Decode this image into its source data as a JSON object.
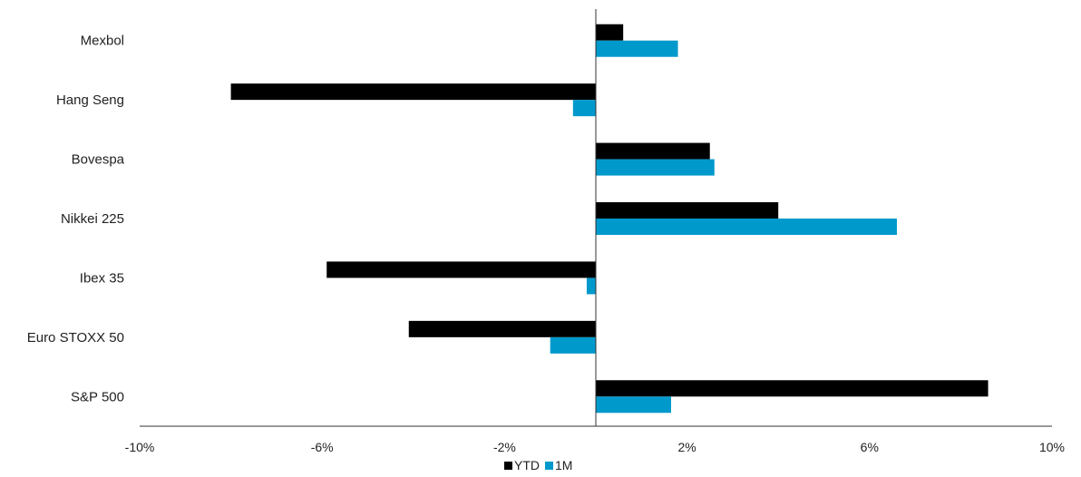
{
  "chart_data": {
    "type": "bar",
    "orientation": "horizontal",
    "title": "",
    "xlabel": "",
    "ylabel": "",
    "categories": [
      "Mexbol",
      "Hang Seng",
      "Bovespa",
      "Nikkei 225",
      "Ibex 35",
      "Euro STOXX 50",
      "S&P 500"
    ],
    "series": [
      {
        "name": "YTD",
        "color": "#000000",
        "values": [
          0.6,
          -8.0,
          2.5,
          4.0,
          -5.9,
          -4.1,
          8.6
        ]
      },
      {
        "name": "1M",
        "color": "#0099cc",
        "values": [
          1.8,
          -0.5,
          2.6,
          6.6,
          -0.2,
          -1.0,
          1.65
        ]
      }
    ],
    "xlim": [
      -10,
      10
    ],
    "xticks": [
      -10,
      -6,
      -2,
      2,
      6,
      10
    ],
    "xtick_labels": [
      "-10%",
      "-6%",
      "-2%",
      "2%",
      "6%",
      "10%"
    ],
    "grid": false,
    "legend": {
      "position": "bottom-center",
      "entries": [
        "YTD",
        "1M"
      ]
    }
  }
}
